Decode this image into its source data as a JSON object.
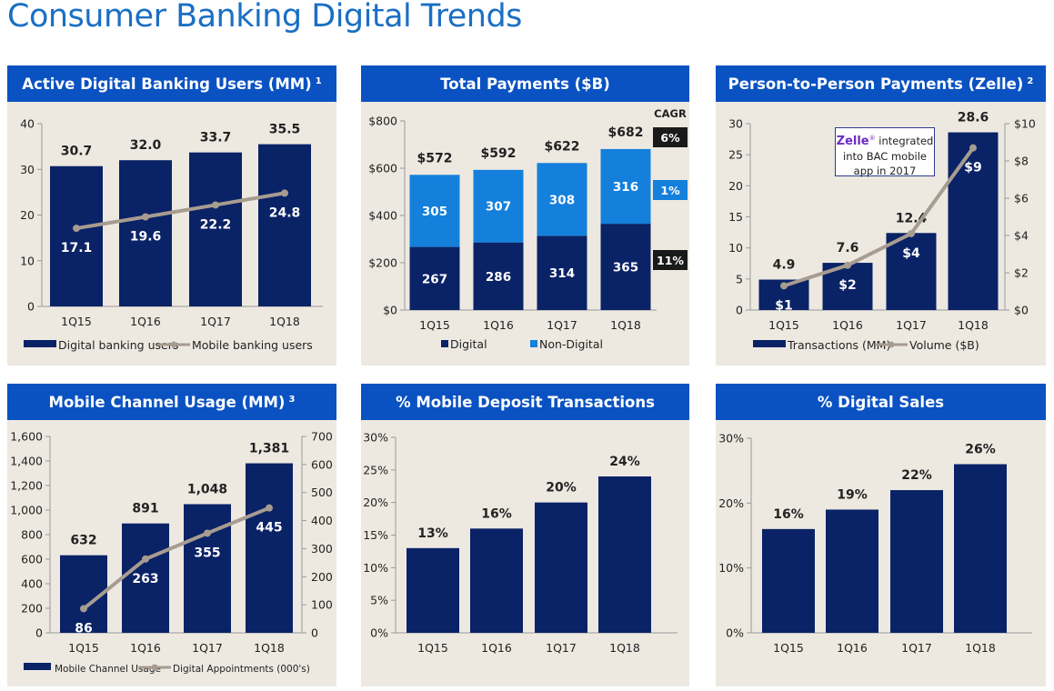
{
  "page_title": "Consumer Banking Digital Trends",
  "colors": {
    "header": "#0a52c2",
    "bar": "#0a2266",
    "bar_light": "#1480dc",
    "line": "#a79c90",
    "panel": "#ede9e1",
    "title": "#1a6fc4"
  },
  "chart_data": [
    {
      "id": "c1",
      "type": "bar+line",
      "title": "Active Digital Banking Users (MM)",
      "footnote": "1",
      "categories": [
        "1Q15",
        "1Q16",
        "1Q17",
        "1Q18"
      ],
      "series": [
        {
          "name": "Digital banking users",
          "type": "bar",
          "values": [
            30.7,
            32.0,
            33.7,
            35.5
          ],
          "labels": [
            "30.7",
            "32.0",
            "33.7",
            "35.5"
          ]
        },
        {
          "name": "Mobile banking users",
          "type": "line",
          "values": [
            17.1,
            19.6,
            22.2,
            24.8
          ],
          "labels": [
            "17.1",
            "19.6",
            "22.2",
            "24.8"
          ]
        }
      ],
      "ylim": [
        0,
        40
      ],
      "yticks": [
        "0",
        "10",
        "20",
        "30",
        "40"
      ]
    },
    {
      "id": "c2",
      "type": "stacked-bar",
      "title": "Total Payments ($B)",
      "categories": [
        "1Q15",
        "1Q16",
        "1Q17",
        "1Q18"
      ],
      "series": [
        {
          "name": "Digital",
          "values": [
            267,
            286,
            314,
            365
          ],
          "labels": [
            "267",
            "286",
            "314",
            "365"
          ]
        },
        {
          "name": "Non-Digital",
          "values": [
            305,
            307,
            308,
            316
          ],
          "labels": [
            "305",
            "307",
            "308",
            "316"
          ]
        }
      ],
      "totals": [
        "$572",
        "$592",
        "$622",
        "$682"
      ],
      "cagr": {
        "header": "CAGR",
        "total": "6%",
        "non_digital": "1%",
        "digital": "11%"
      },
      "ylim": [
        0,
        800
      ],
      "yticks": [
        "$0",
        "$200",
        "$400",
        "$600",
        "$800"
      ]
    },
    {
      "id": "c3",
      "type": "bar+line",
      "title": "Person-to-Person Payments (Zelle)",
      "footnote": "2",
      "categories": [
        "1Q15",
        "1Q16",
        "1Q17",
        "1Q18"
      ],
      "series": [
        {
          "name": "Transactions (MM)",
          "type": "bar",
          "values": [
            4.9,
            7.6,
            12.4,
            28.6
          ],
          "labels": [
            "4.9",
            "7.6",
            "12.4",
            "28.6"
          ]
        },
        {
          "name": "Volume ($B)",
          "type": "line",
          "axis": "right",
          "values": [
            1.3,
            2.4,
            4.1,
            8.7
          ],
          "labels": [
            "$1",
            "$2",
            "$4",
            "$9"
          ]
        }
      ],
      "ylim": [
        0,
        30
      ],
      "yticks": [
        "0",
        "5",
        "10",
        "15",
        "20",
        "25",
        "30"
      ],
      "y2lim": [
        0,
        10
      ],
      "y2ticks": [
        "$0",
        "$2",
        "$4",
        "$6",
        "$8",
        "$10"
      ],
      "annotation": {
        "logo": "Zelle",
        "text": "integrated into BAC mobile app in 2017"
      }
    },
    {
      "id": "c4",
      "type": "bar+line",
      "title": "Mobile Channel Usage (MM)",
      "footnote": "3",
      "categories": [
        "1Q15",
        "1Q16",
        "1Q17",
        "1Q18"
      ],
      "series": [
        {
          "name": "Mobile Channel Usage",
          "type": "bar",
          "values": [
            632,
            891,
            1048,
            1381
          ],
          "labels": [
            "632",
            "891",
            "1,048",
            "1,381"
          ]
        },
        {
          "name": "Digital Appointments (000's)",
          "type": "line",
          "axis": "right",
          "values": [
            86,
            263,
            355,
            445
          ],
          "labels": [
            "86",
            "263",
            "355",
            "445"
          ]
        }
      ],
      "ylim": [
        0,
        1600
      ],
      "yticks": [
        "0",
        "200",
        "400",
        "600",
        "800",
        "1,000",
        "1,200",
        "1,400",
        "1,600"
      ],
      "y2lim": [
        0,
        700
      ],
      "y2ticks": [
        "0",
        "100",
        "200",
        "300",
        "400",
        "500",
        "600",
        "700"
      ]
    },
    {
      "id": "c5",
      "type": "bar",
      "title": "% Mobile Deposit Transactions",
      "categories": [
        "1Q15",
        "1Q16",
        "1Q17",
        "1Q18"
      ],
      "series": [
        {
          "type": "bar",
          "values": [
            13,
            16,
            20,
            24
          ],
          "labels": [
            "13%",
            "16%",
            "20%",
            "24%"
          ]
        }
      ],
      "ylim": [
        0,
        30
      ],
      "yticks": [
        "0%",
        "5%",
        "10%",
        "15%",
        "20%",
        "25%",
        "30%"
      ]
    },
    {
      "id": "c6",
      "type": "bar",
      "title": "% Digital Sales",
      "categories": [
        "1Q15",
        "1Q16",
        "1Q17",
        "1Q18"
      ],
      "series": [
        {
          "type": "bar",
          "values": [
            16,
            19,
            22,
            26
          ],
          "labels": [
            "16%",
            "19%",
            "22%",
            "26%"
          ]
        }
      ],
      "ylim": [
        0,
        30
      ],
      "yticks": [
        "0%",
        "10%",
        "20%",
        "30%"
      ]
    }
  ]
}
